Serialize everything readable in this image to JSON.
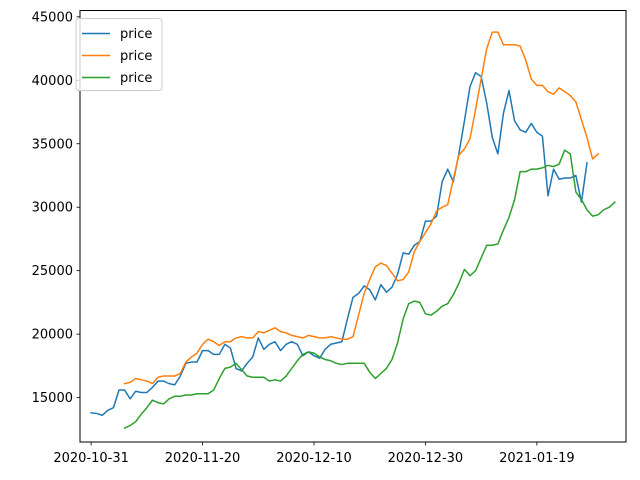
{
  "chart_data": {
    "type": "line",
    "title": "",
    "xlabel": "",
    "ylabel": "",
    "x_start": "2020-10-31",
    "xlim": [
      "2020-10-29",
      "2021-02-04"
    ],
    "ylim": [
      11500,
      45500
    ],
    "grid": false,
    "legend_position": "top-left",
    "x_ticks": [
      {
        "date": "2020-10-31",
        "label": "2020-10-31"
      },
      {
        "date": "2020-11-20",
        "label": "2020-11-20"
      },
      {
        "date": "2020-12-10",
        "label": "2020-12-10"
      },
      {
        "date": "2020-12-30",
        "label": "2020-12-30"
      },
      {
        "date": "2021-01-19",
        "label": "2021-01-19"
      }
    ],
    "y_ticks": [
      15000,
      20000,
      25000,
      30000,
      35000,
      40000,
      45000
    ],
    "y_tick_labels": [
      "15000",
      "20000",
      "25000",
      "30000",
      "35000",
      "40000",
      "45000"
    ],
    "series": [
      {
        "name": "price",
        "color": "#1f77b4",
        "start_date": "2020-10-31",
        "values": [
          13800,
          13750,
          13600,
          14000,
          14200,
          15600,
          15600,
          14900,
          15500,
          15400,
          15400,
          15800,
          16300,
          16300,
          16100,
          16000,
          16700,
          17700,
          17800,
          17800,
          18700,
          18700,
          18400,
          18400,
          19200,
          18900,
          17300,
          17100,
          17700,
          18200,
          19700,
          18800,
          19200,
          19400,
          18700,
          19200,
          19400,
          19200,
          18300,
          18600,
          18300,
          18100,
          18800,
          19200,
          19300,
          19400,
          21200,
          22900,
          23200,
          23800,
          23500,
          22700,
          23900,
          23300,
          23700,
          24700,
          26400,
          26300,
          27000,
          27300,
          28900,
          28900,
          29300,
          32000,
          33000,
          32000,
          34200,
          36800,
          39500,
          40600,
          40300,
          38200,
          35500,
          34200,
          37400,
          39200,
          36800,
          36100,
          35900,
          36600,
          35900,
          35600,
          30900,
          33000,
          32200,
          32300,
          32300,
          32500,
          30400,
          33500
        ]
      },
      {
        "name": "price",
        "color": "#ff7f0e",
        "start_date": "2020-11-06",
        "values": [
          16100,
          16200,
          16500,
          16400,
          16300,
          16100,
          16600,
          16700,
          16700,
          16700,
          16900,
          17800,
          18200,
          18500,
          19200,
          19600,
          19400,
          19100,
          19400,
          19400,
          19700,
          19800,
          19700,
          19700,
          20200,
          20100,
          20300,
          20500,
          20200,
          20100,
          19900,
          19800,
          19700,
          19900,
          19800,
          19700,
          19700,
          19800,
          19700,
          19600,
          19600,
          19800,
          21500,
          23200,
          24300,
          25300,
          25600,
          25400,
          24800,
          24200,
          24300,
          24900,
          26500,
          27300,
          28000,
          28700,
          29700,
          30000,
          30200,
          32200,
          34100,
          34600,
          35400,
          37700,
          40100,
          42500,
          43800,
          43800,
          42800,
          42800,
          42800,
          42700,
          41600,
          40100,
          39600,
          39600,
          39100,
          38900,
          39400,
          39100,
          38800,
          38300,
          36900,
          35500,
          33800,
          34200
        ]
      },
      {
        "name": "price",
        "color": "#2ca02c",
        "start_date": "2020-11-06",
        "values": [
          12600,
          12800,
          13100,
          13700,
          14200,
          14800,
          14600,
          14500,
          14900,
          15100,
          15100,
          15200,
          15200,
          15300,
          15300,
          15300,
          15600,
          16500,
          17300,
          17400,
          17700,
          17200,
          16700,
          16600,
          16600,
          16600,
          16300,
          16400,
          16300,
          16700,
          17300,
          17900,
          18400,
          18600,
          18500,
          18200,
          18000,
          17900,
          17700,
          17600,
          17700,
          17700,
          17700,
          17700,
          17000,
          16500,
          16900,
          17300,
          18000,
          19300,
          21200,
          22400,
          22600,
          22500,
          21600,
          21500,
          21800,
          22200,
          22400,
          23100,
          24000,
          25100,
          24600,
          25000,
          26000,
          27000,
          27000,
          27100,
          28200,
          29200,
          30600,
          32800,
          32800,
          33000,
          33000,
          33100,
          33300,
          33200,
          33400,
          34500,
          34200,
          31200,
          30600,
          29800,
          29300,
          29400,
          29800,
          30000,
          30400
        ]
      }
    ]
  }
}
